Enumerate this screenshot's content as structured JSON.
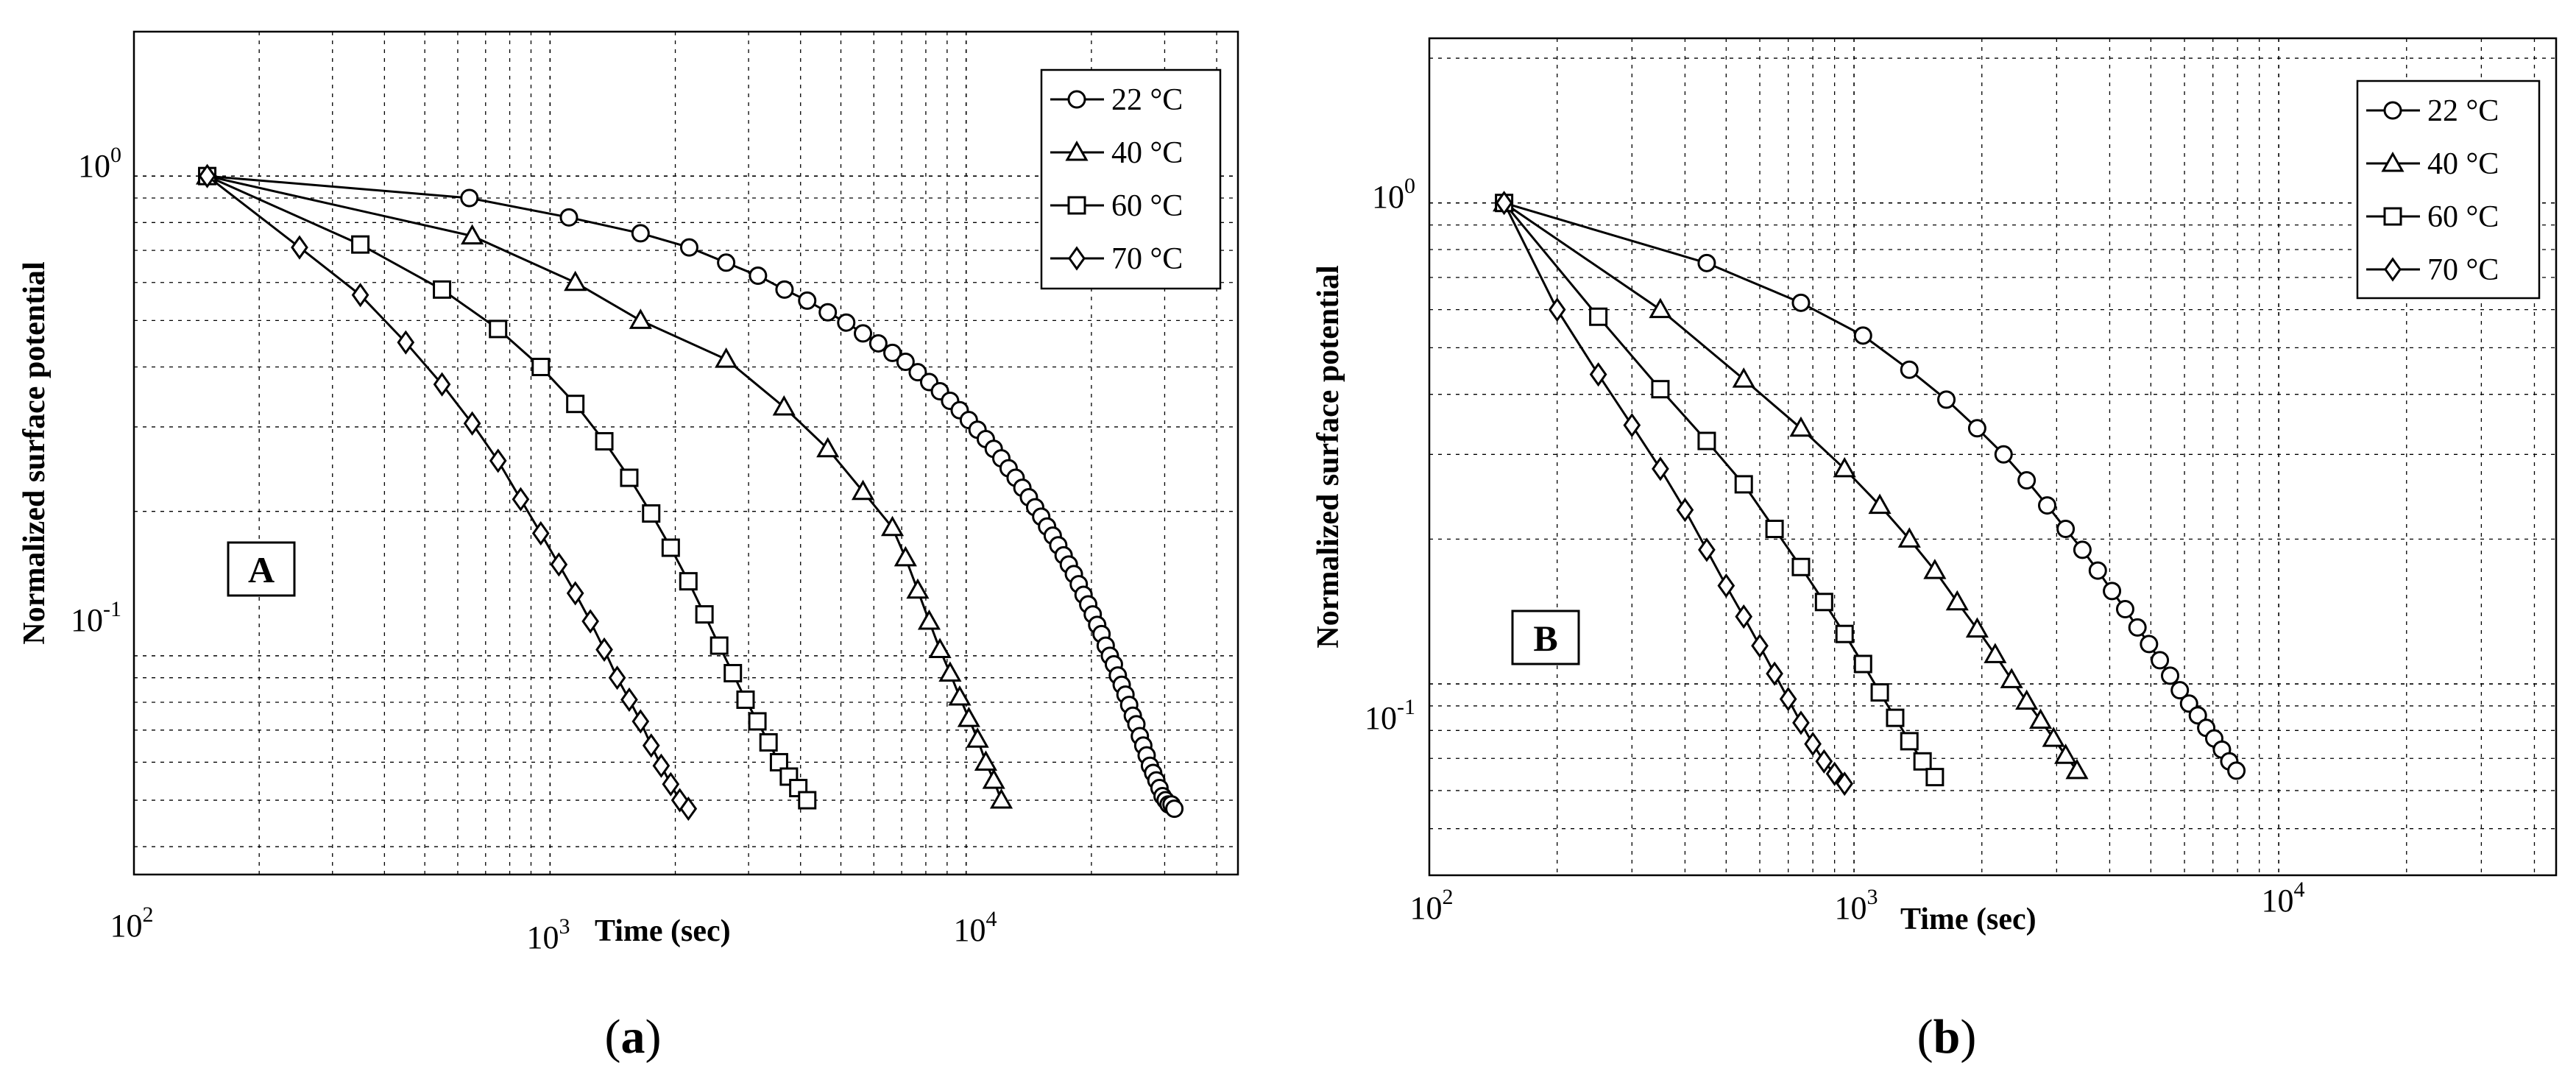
{
  "charts": [
    {
      "caption_parts": [
        "(",
        "a",
        ")"
      ],
      "chart_data": {
        "type": "line",
        "xscale": "log",
        "yscale": "log",
        "xlim": [
          100,
          45000
        ],
        "ylim": [
          0.035,
          2.0
        ],
        "xticks": [
          100,
          1000,
          10000
        ],
        "yticks": [
          0.1,
          1
        ],
        "grid": true,
        "legend": "top-right",
        "xlabel": "Time (sec)",
        "ylabel": "Normalized surface potential",
        "panel_label": "A",
        "series": [
          {
            "name": "22 °C",
            "marker": "circle",
            "x": [
              150,
              640,
              1110,
              1650,
              2160,
              2650,
              3160,
              3660,
              4150,
              4650,
              5150,
              5650,
              6150,
              6650,
              7150,
              7650,
              8150,
              8650,
              9150,
              9650,
              10150,
              10650,
              11150,
              11650,
              12150,
              12650,
              13150,
              13650,
              14150,
              14650,
              15150,
              15650,
              16150,
              16650,
              17150,
              17650,
              18150,
              18650,
              19150,
              19650,
              20150,
              20650,
              21150,
              21650,
              22150,
              22650,
              23150,
              23650,
              24150,
              24650,
              25150,
              25650,
              26150,
              26650,
              27150,
              27650,
              28150,
              28650,
              29150,
              29650,
              30150,
              30650,
              31150,
              31650
            ],
            "y": [
              1.0,
              0.9,
              0.82,
              0.76,
              0.71,
              0.66,
              0.62,
              0.58,
              0.55,
              0.52,
              0.495,
              0.47,
              0.448,
              0.428,
              0.41,
              0.39,
              0.372,
              0.356,
              0.34,
              0.325,
              0.31,
              0.296,
              0.283,
              0.27,
              0.258,
              0.246,
              0.235,
              0.224,
              0.214,
              0.204,
              0.195,
              0.186,
              0.178,
              0.17,
              0.162,
              0.155,
              0.148,
              0.141,
              0.134,
              0.128,
              0.122,
              0.116,
              0.111,
              0.105,
              0.1,
              0.096,
              0.091,
              0.087,
              0.083,
              0.079,
              0.075,
              0.072,
              0.068,
              0.065,
              0.062,
              0.059,
              0.057,
              0.055,
              0.053,
              0.051,
              0.05,
              0.049,
              0.049,
              0.048
            ]
          },
          {
            "name": "40 °C",
            "marker": "triangle",
            "x": [
              150,
              650,
              1150,
              1650,
              2650,
              3650,
              4650,
              5650,
              6650,
              7150,
              7650,
              8150,
              8650,
              9150,
              9650,
              10150,
              10650,
              11150,
              11650,
              12150
            ],
            "y": [
              1.0,
              0.75,
              0.6,
              0.5,
              0.415,
              0.33,
              0.27,
              0.22,
              0.185,
              0.16,
              0.137,
              0.118,
              0.103,
              0.092,
              0.082,
              0.074,
              0.067,
              0.06,
              0.055,
              0.05
            ]
          },
          {
            "name": "60 °C",
            "marker": "square",
            "x": [
              150,
              350,
              550,
              750,
              950,
              1150,
              1350,
              1550,
              1750,
              1950,
              2150,
              2350,
              2550,
              2750,
              2950,
              3150,
              3350,
              3550,
              3750,
              3950,
              4150
            ],
            "y": [
              1.0,
              0.72,
              0.58,
              0.48,
              0.4,
              0.335,
              0.28,
              0.235,
              0.198,
              0.168,
              0.143,
              0.122,
              0.105,
              0.092,
              0.081,
              0.073,
              0.066,
              0.06,
              0.056,
              0.053,
              0.05
            ]
          },
          {
            "name": "70 °C",
            "marker": "diamond",
            "x": [
              150,
              250,
              350,
              450,
              550,
              650,
              750,
              850,
              950,
              1050,
              1150,
              1250,
              1350,
              1450,
              1550,
              1650,
              1750,
              1850,
              1950,
              2050,
              2150
            ],
            "y": [
              1.0,
              0.71,
              0.565,
              0.45,
              0.368,
              0.305,
              0.255,
              0.212,
              0.18,
              0.155,
              0.135,
              0.118,
              0.103,
              0.09,
              0.081,
              0.073,
              0.065,
              0.059,
              0.054,
              0.05,
              0.048
            ]
          }
        ]
      }
    },
    {
      "caption_parts": [
        "(",
        "b",
        ")"
      ],
      "chart_data": {
        "type": "line",
        "xscale": "log",
        "yscale": "log",
        "xlim": [
          100,
          45000
        ],
        "ylim": [
          0.04,
          2.2
        ],
        "xticks": [
          100,
          1000,
          10000
        ],
        "yticks": [
          0.1,
          1
        ],
        "grid": true,
        "legend": "top-right",
        "xlabel": "Time (sec)",
        "ylabel": "Normalized surface potential",
        "panel_label": "B",
        "series": [
          {
            "name": "22 °C",
            "marker": "circle",
            "x": [
              150,
              450,
              750,
              1050,
              1350,
              1650,
              1950,
              2250,
              2550,
              2850,
              3150,
              3450,
              3750,
              4050,
              4350,
              4650,
              4950,
              5250,
              5550,
              5850,
              6150,
              6450,
              6750,
              7050,
              7350,
              7650,
              7950
            ],
            "y": [
              1.0,
              0.75,
              0.62,
              0.53,
              0.45,
              0.39,
              0.34,
              0.3,
              0.265,
              0.235,
              0.21,
              0.19,
              0.172,
              0.156,
              0.143,
              0.131,
              0.121,
              0.112,
              0.104,
              0.097,
              0.091,
              0.086,
              0.081,
              0.077,
              0.073,
              0.069,
              0.066
            ]
          },
          {
            "name": "40 °C",
            "marker": "triangle",
            "x": [
              150,
              350,
              550,
              750,
              950,
              1150,
              1350,
              1550,
              1750,
              1950,
              2150,
              2350,
              2550,
              2750,
              2950,
              3150,
              3350
            ],
            "y": [
              1.0,
              0.6,
              0.43,
              0.34,
              0.28,
              0.235,
              0.2,
              0.172,
              0.148,
              0.13,
              0.115,
              0.102,
              0.092,
              0.084,
              0.077,
              0.071,
              0.066
            ]
          },
          {
            "name": "60 °C",
            "marker": "square",
            "x": [
              150,
              250,
              350,
              450,
              550,
              650,
              750,
              850,
              950,
              1050,
              1150,
              1250,
              1350,
              1450,
              1550
            ],
            "y": [
              1.0,
              0.58,
              0.41,
              0.32,
              0.26,
              0.21,
              0.175,
              0.148,
              0.127,
              0.11,
              0.096,
              0.085,
              0.076,
              0.069,
              0.064
            ]
          },
          {
            "name": "70 °C",
            "marker": "diamond",
            "x": [
              150,
              200,
              250,
              300,
              350,
              400,
              450,
              500,
              550,
              600,
              650,
              700,
              750,
              800,
              850,
              900,
              950
            ],
            "y": [
              1.0,
              0.6,
              0.44,
              0.345,
              0.28,
              0.23,
              0.19,
              0.16,
              0.138,
              0.12,
              0.105,
              0.093,
              0.083,
              0.075,
              0.069,
              0.065,
              0.062
            ]
          }
        ]
      }
    }
  ]
}
